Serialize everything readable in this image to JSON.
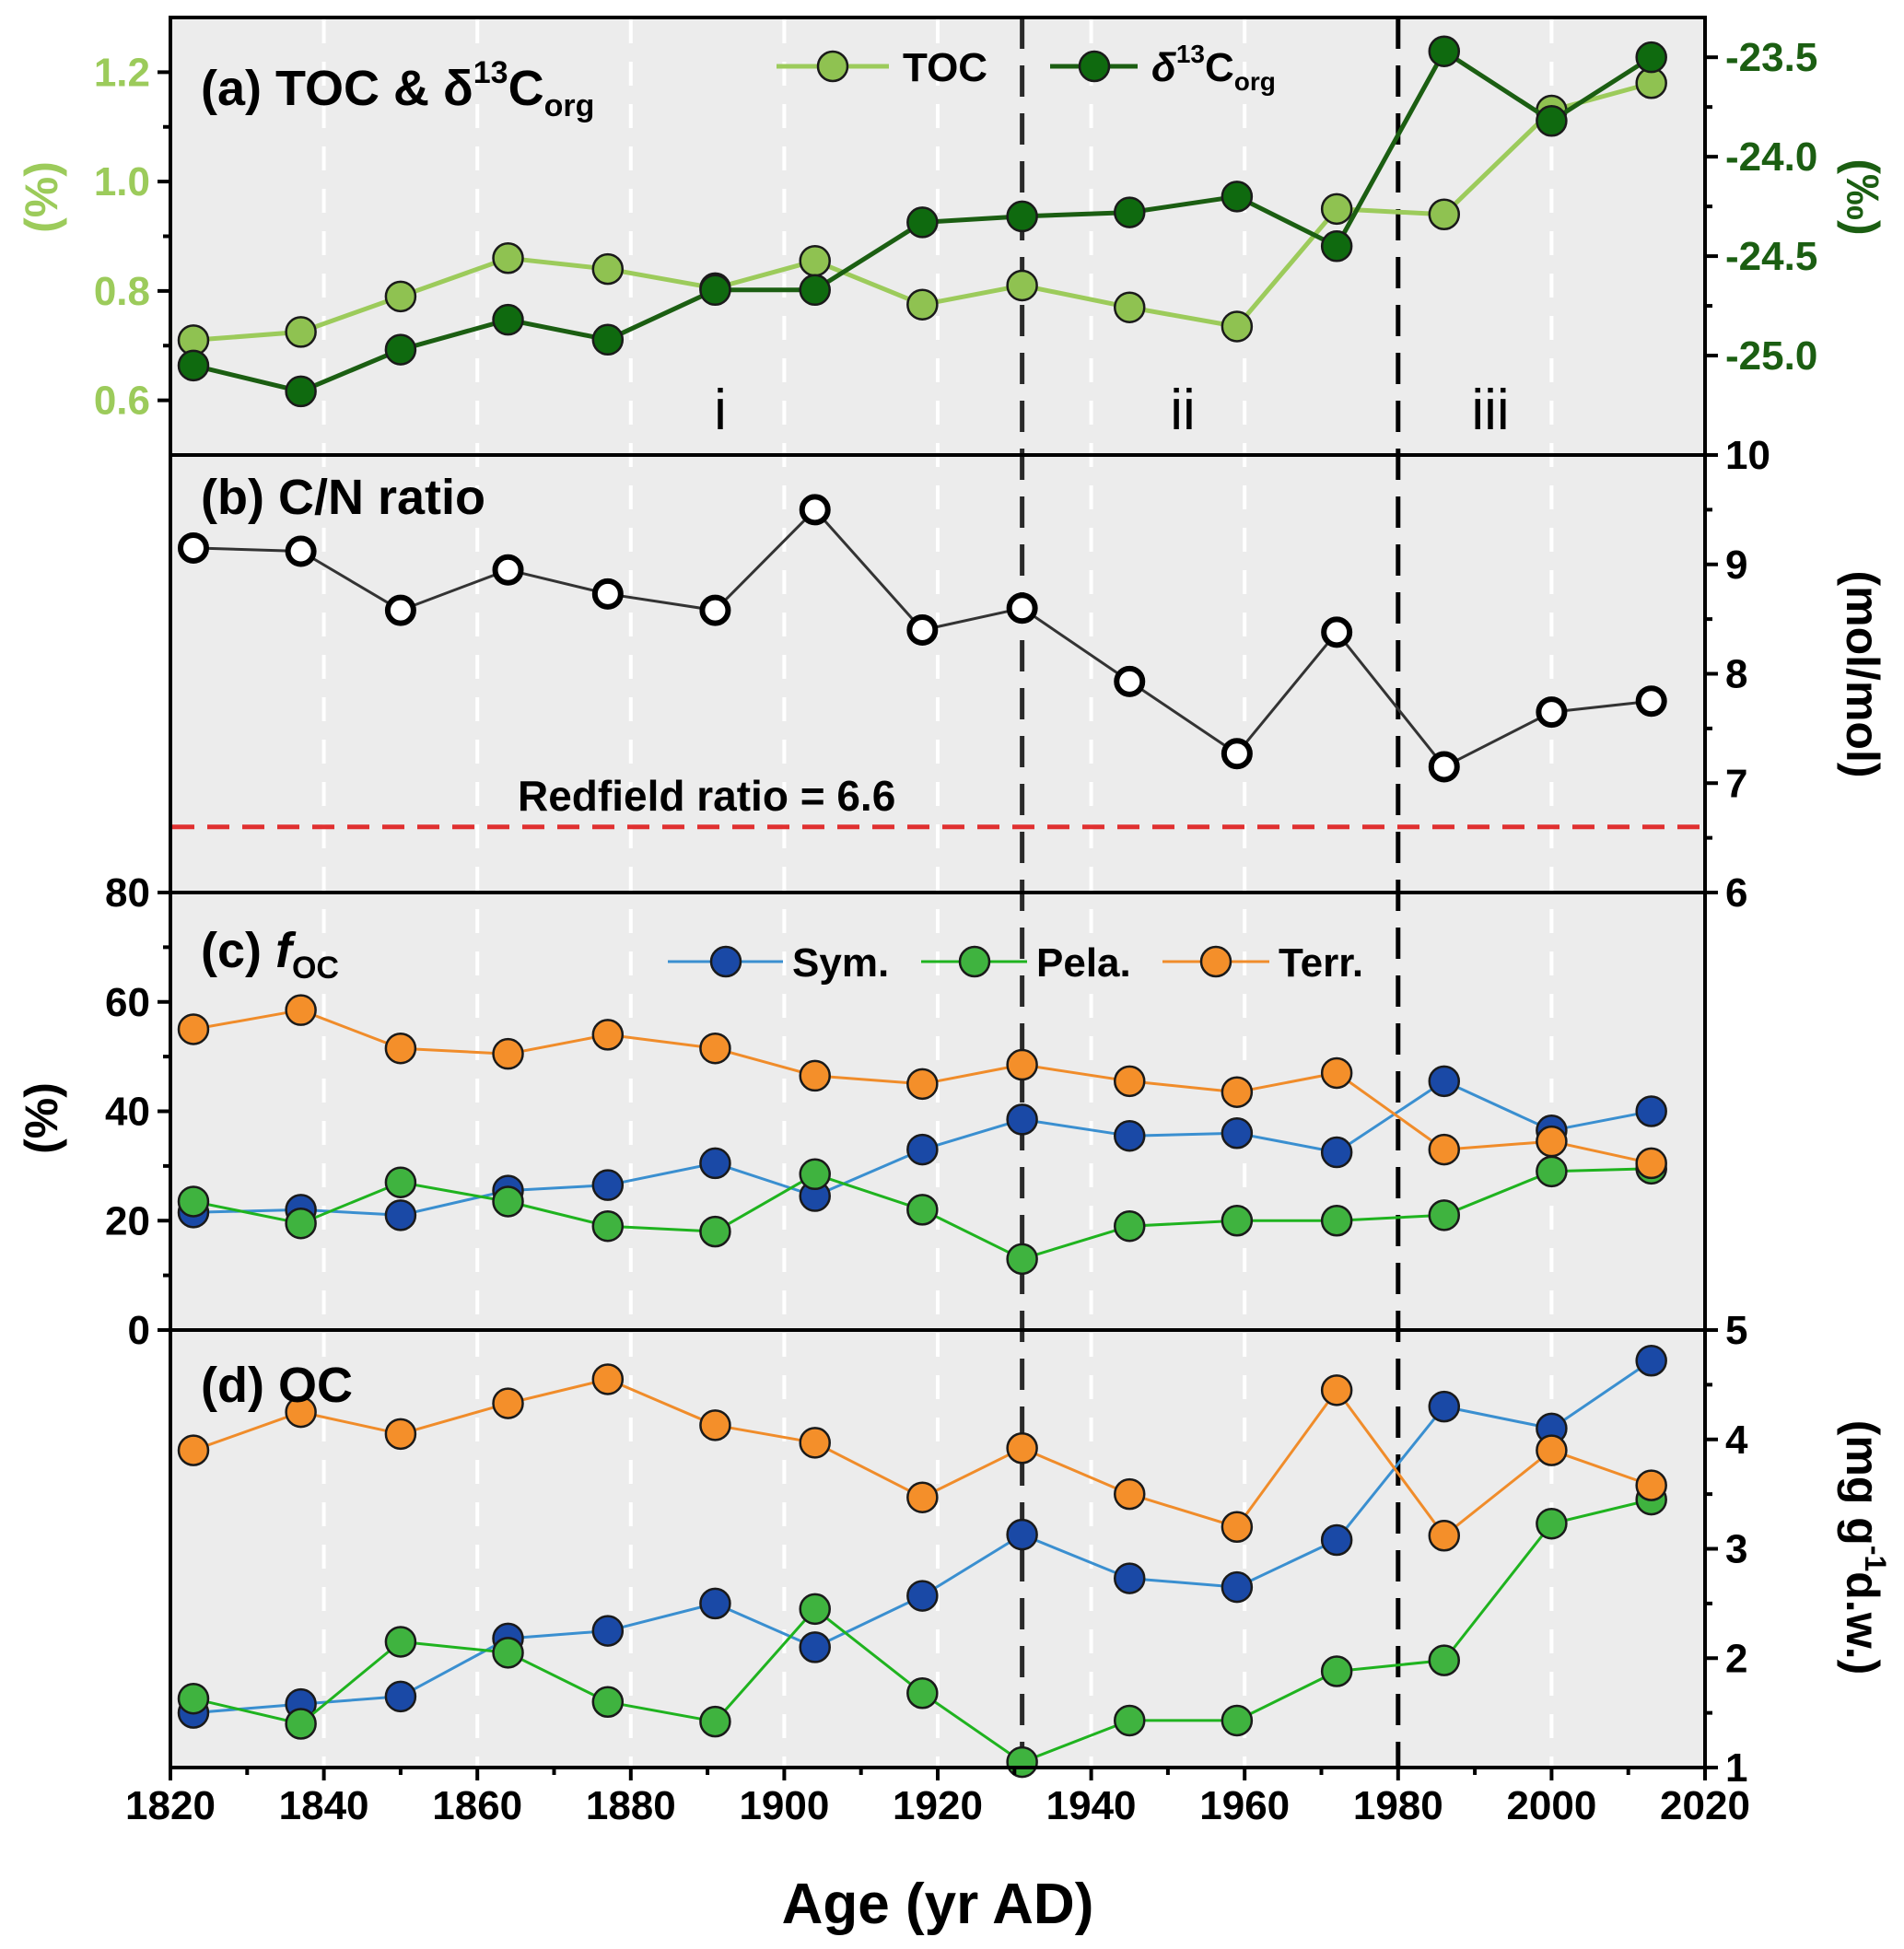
{
  "colors": {
    "toc": "#9ccb5b",
    "toc_marker": "#8fc251",
    "d13c": "#1b5e12",
    "d13c_marker": "#0f6a0f",
    "cn_line": "#333333",
    "sym_line": "#3a8fd0",
    "sym_marker": "#1a49a6",
    "pela_line": "#1fb31f",
    "pela_marker": "#3fb33f",
    "terr_line": "#f08c2a",
    "terr_marker": "#f48f2a",
    "redfield": "#e03030",
    "panel_bg": "#ececec",
    "boundary": "#111111"
  },
  "chart_data": [
    {
      "type": "line",
      "panel": "a",
      "title": "(a) TOC & δ13Corg",
      "title_main": "(a) TOC & δ",
      "title_sup": "13",
      "title_tail": "C",
      "title_sub": "org",
      "xlabel": "Age (yr AD)",
      "x": [
        1823,
        1837,
        1850,
        1864,
        1877,
        1891,
        1904,
        1918,
        1931,
        1945,
        1959,
        1972,
        1986,
        2000,
        2013
      ],
      "series": [
        {
          "name": "TOC",
          "axis": "left",
          "values": [
            0.71,
            0.725,
            0.79,
            0.86,
            0.84,
            0.805,
            0.855,
            0.775,
            0.81,
            0.77,
            0.735,
            0.95,
            0.94,
            1.13,
            1.18
          ]
        },
        {
          "name": "δ13Corg",
          "axis": "right",
          "values": [
            -25.05,
            -25.18,
            -24.97,
            -24.82,
            -24.92,
            -24.67,
            -24.67,
            -24.33,
            -24.3,
            -24.28,
            -24.2,
            -24.45,
            -23.47,
            -23.82,
            -23.5
          ]
        }
      ],
      "legend": [
        {
          "name": "TOC",
          "main": "TOC",
          "sup": "",
          "sub": ""
        },
        {
          "name": "δ13Corg",
          "main": "δ",
          "sup": "13",
          "tail": "C",
          "sub": "org"
        }
      ],
      "ylabel_left": "(%)",
      "ylim_left": [
        0.5,
        1.3
      ],
      "yticks_left": [
        "0.6",
        "0.8",
        "1.0",
        "1.2"
      ],
      "ylabel_right": "(‰)",
      "ylim_right": [
        -25.5,
        -23.3
      ],
      "yticks_right": [
        "-25.0",
        "-24.5",
        "-24.0",
        "-23.5"
      ],
      "phase_labels": [
        "i",
        "ii",
        "iii"
      ]
    },
    {
      "type": "line",
      "panel": "b",
      "title": "(b) C/N ratio",
      "x": [
        1823,
        1837,
        1850,
        1864,
        1877,
        1891,
        1904,
        1918,
        1931,
        1945,
        1959,
        1972,
        1986,
        2000,
        2013
      ],
      "values": [
        9.15,
        9.12,
        8.58,
        8.95,
        8.73,
        8.58,
        9.5,
        8.4,
        8.6,
        7.93,
        7.27,
        8.38,
        7.15,
        7.65,
        7.75
      ],
      "ylabel": "(mol/mol)",
      "ylim": [
        6,
        10
      ],
      "yticks": [
        "6",
        "7",
        "8",
        "9",
        "10"
      ],
      "reference_line": {
        "label": "Redfield ratio = 6.6",
        "value": 6.6
      }
    },
    {
      "type": "line",
      "panel": "c",
      "title": "(c) fOC",
      "title_prefix": "(c) ",
      "title_f": "f",
      "title_sub": "OC",
      "x": [
        1823,
        1837,
        1850,
        1864,
        1877,
        1891,
        1904,
        1918,
        1931,
        1945,
        1959,
        1972,
        1986,
        2000,
        2013
      ],
      "series": [
        {
          "name": "Sym.",
          "values": [
            21.5,
            22,
            21,
            25.5,
            26.5,
            30.5,
            24.5,
            33,
            38.5,
            35.5,
            36,
            32.5,
            45.5,
            36.5,
            40
          ]
        },
        {
          "name": "Pela.",
          "values": [
            23.5,
            19.5,
            27,
            23.5,
            19,
            18,
            28.5,
            22,
            13,
            19,
            20,
            20,
            21,
            29,
            29.5
          ]
        },
        {
          "name": "Terr.",
          "values": [
            55,
            58.5,
            51.5,
            50.5,
            54,
            51.5,
            46.5,
            45,
            48.5,
            45.5,
            43.5,
            47,
            33,
            34.5,
            30.5
          ]
        }
      ],
      "legend": [
        "Sym.",
        "Pela.",
        "Terr."
      ],
      "ylabel": "(%)",
      "ylim": [
        0,
        80
      ],
      "yticks": [
        "0",
        "20",
        "40",
        "60",
        "80"
      ]
    },
    {
      "type": "line",
      "panel": "d",
      "title": "(d) OC",
      "x": [
        1823,
        1837,
        1850,
        1864,
        1877,
        1891,
        1904,
        1918,
        1931,
        1945,
        1959,
        1972,
        1986,
        2000,
        2013
      ],
      "series": [
        {
          "name": "Sym.",
          "values": [
            1.5,
            1.58,
            1.65,
            2.18,
            2.25,
            2.5,
            2.1,
            2.57,
            3.13,
            2.73,
            2.65,
            3.08,
            4.3,
            4.1,
            4.72
          ]
        },
        {
          "name": "Pela.",
          "values": [
            1.63,
            1.4,
            2.15,
            2.05,
            1.6,
            1.42,
            2.45,
            1.68,
            1.05,
            1.43,
            1.43,
            1.88,
            1.98,
            3.23,
            3.45
          ]
        },
        {
          "name": "Terr.",
          "values": [
            3.9,
            4.25,
            4.05,
            4.33,
            4.55,
            4.13,
            3.97,
            3.47,
            3.92,
            3.5,
            3.2,
            4.45,
            3.12,
            3.9,
            3.58
          ]
        }
      ],
      "ylabel": "(mg g-1d.w.)",
      "ylabel_pre": "(mg g",
      "ylabel_sup": "-1",
      "ylabel_post": "d.w.)",
      "ylim": [
        1,
        5
      ],
      "yticks": [
        "1",
        "2",
        "3",
        "4",
        "5"
      ],
      "xlim": [
        1820,
        2020
      ],
      "xticks": [
        "1820",
        "1840",
        "1860",
        "1880",
        "1900",
        "1920",
        "1940",
        "1960",
        "1980",
        "2000",
        "2020"
      ]
    }
  ],
  "boundaries": [
    1931,
    1980
  ],
  "grid_years": [
    1840,
    1860,
    1880,
    1900,
    1920,
    1940,
    1960,
    2000
  ]
}
